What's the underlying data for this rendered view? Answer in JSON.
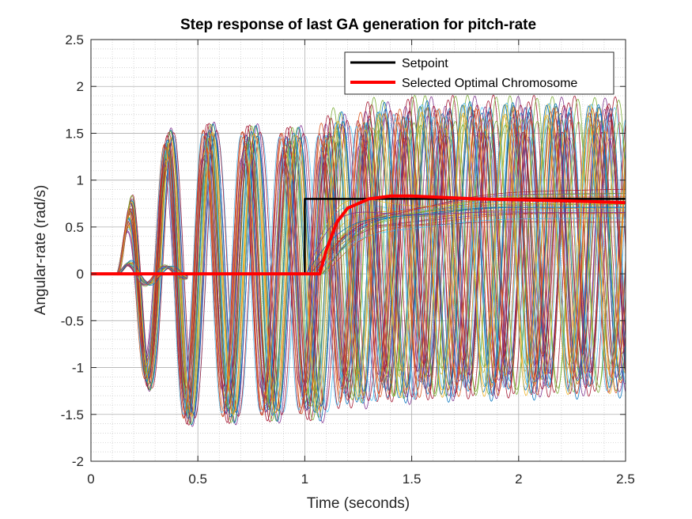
{
  "chart_data": {
    "type": "line",
    "title": "Step response of last GA generation for pitch-rate",
    "xlabel": "Time (seconds)",
    "ylabel": "Angular-rate (rad/s)",
    "xlim": [
      0,
      2.5
    ],
    "ylim": [
      -2,
      2.5
    ],
    "xticks": [
      0,
      0.5,
      1,
      1.5,
      2,
      2.5
    ],
    "xtick_labels": [
      "0",
      "0.5",
      "1",
      "1.5",
      "2",
      "2.5"
    ],
    "yticks": [
      -2,
      -1.5,
      -1,
      -0.5,
      0,
      0.5,
      1,
      1.5,
      2,
      2.5
    ],
    "ytick_labels": [
      "-2",
      "-1.5",
      "-1",
      "-0.5",
      "0",
      "0.5",
      "1",
      "1.5",
      "2",
      "2.5"
    ],
    "grid": "major and minor (dotted)",
    "legend_position": "top-right",
    "series": [
      {
        "name": "Setpoint",
        "color": "#000000",
        "x": [
          0,
          1.0,
          1.0,
          2.5
        ],
        "y": [
          0,
          0,
          0.8,
          0.8
        ]
      },
      {
        "name": "Selected Optimal Chromosome",
        "color": "#ff0000",
        "x": [
          0,
          1.07,
          1.1,
          1.15,
          1.2,
          1.3,
          1.4,
          1.5,
          1.6,
          1.8,
          2.0,
          2.2,
          2.5
        ],
        "y": [
          0,
          0,
          0.25,
          0.55,
          0.7,
          0.8,
          0.83,
          0.83,
          0.82,
          0.8,
          0.79,
          0.78,
          0.76
        ]
      }
    ],
    "population_curves": {
      "description_unlabeled": true,
      "count": 60,
      "colors": [
        "#0072bd",
        "#d95319",
        "#edb120",
        "#7e2f8e",
        "#77ac30",
        "#4dbeee",
        "#a2142f"
      ],
      "oscillation_envelope": [
        {
          "x": 0.2,
          "amplitude": 0.95
        },
        {
          "x": 0.4,
          "amplitude": 1.5
        },
        {
          "x": 1.0,
          "amplitude": 1.45
        },
        {
          "x": 1.5,
          "amplitude": 1.5
        },
        {
          "x": 2.5,
          "amplitude": 1.45
        }
      ],
      "oscillation_frequency_hz": 5.2,
      "settled_range": [
        0.55,
        0.95
      ]
    }
  }
}
